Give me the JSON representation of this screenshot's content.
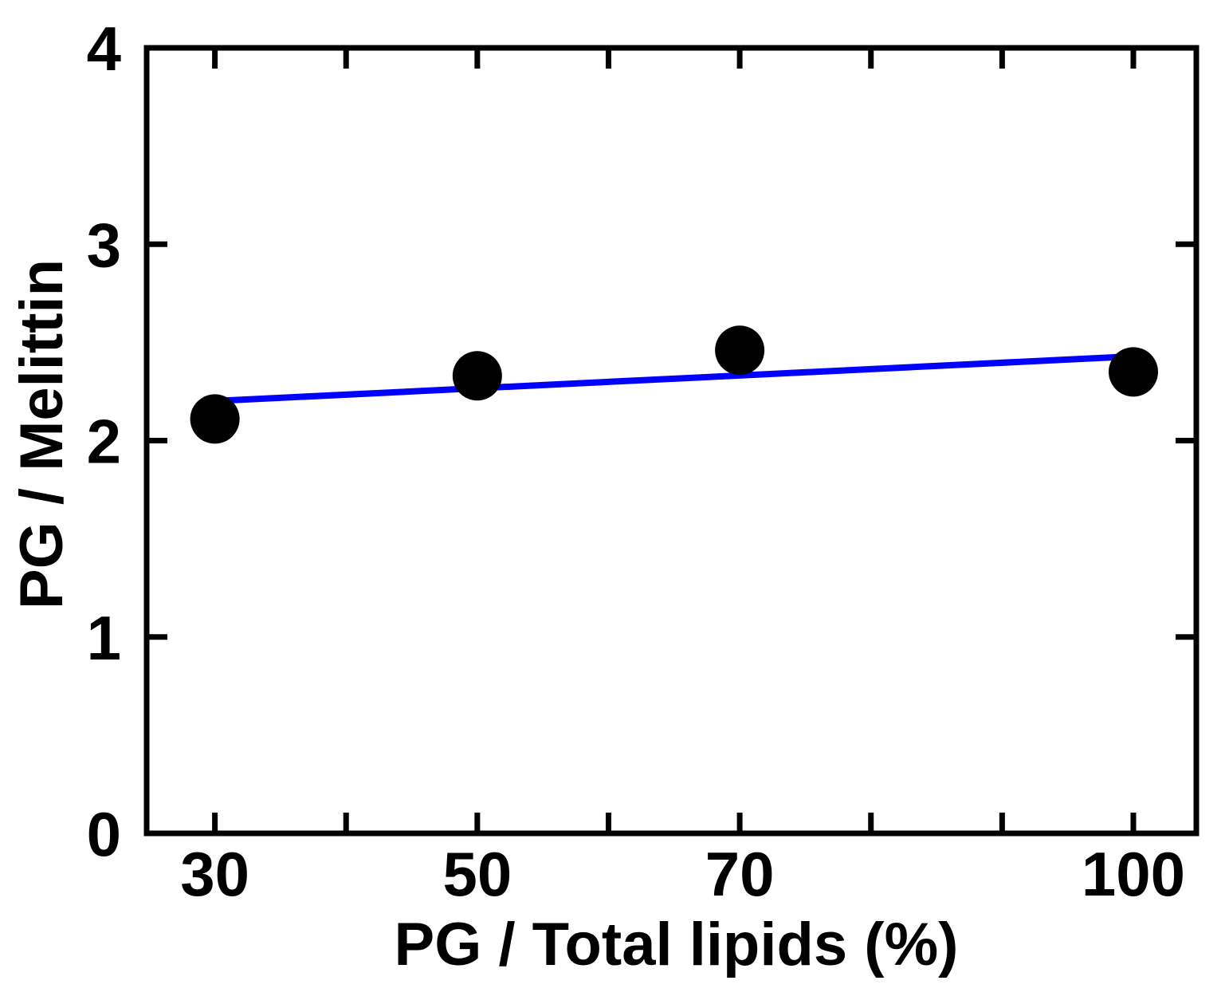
{
  "chart_data": {
    "type": "scatter",
    "title": "",
    "xlabel": "PG / Total lipids (%)",
    "ylabel": "PG / Melittin",
    "xlim": [
      24.8,
      104.8
    ],
    "ylim": [
      0,
      4
    ],
    "x_ticks_labeled": [
      "30",
      "50",
      "70",
      "100"
    ],
    "x_tick_values_labeled": [
      30,
      50,
      70,
      100
    ],
    "x_tick_values_minor": [
      40,
      60,
      80,
      90
    ],
    "y_ticks": [
      "0",
      "1",
      "2",
      "3",
      "4"
    ],
    "y_tick_values": [
      0,
      1,
      2,
      3,
      4
    ],
    "grid": false,
    "series": [
      {
        "kind": "points",
        "x": [
          30,
          50,
          70,
          100
        ],
        "y": [
          2.11,
          2.33,
          2.46,
          2.35
        ],
        "color": "#000000"
      },
      {
        "kind": "fit-line",
        "x": [
          29.5,
          100.3
        ],
        "y": [
          2.2,
          2.43
        ],
        "color": "#0000ff"
      }
    ]
  }
}
